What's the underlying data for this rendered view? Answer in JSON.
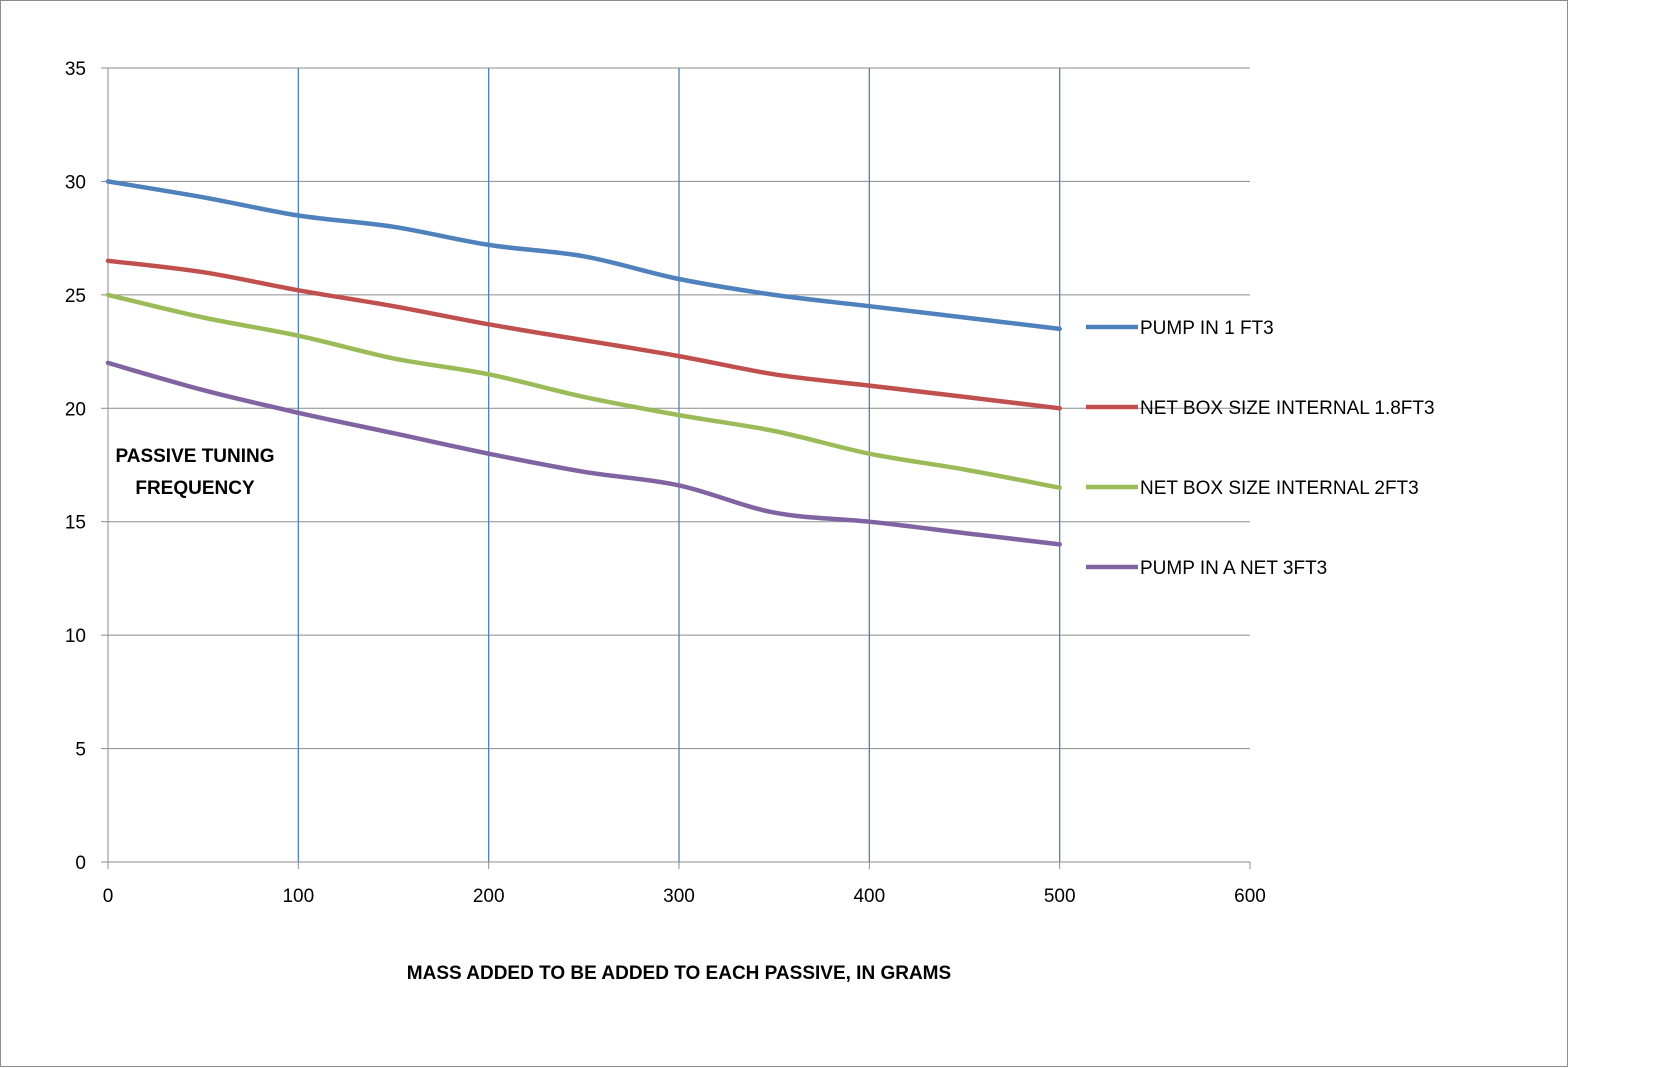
{
  "chart_data": {
    "type": "line",
    "title": "",
    "xlabel": "MASS ADDED TO BE ADDED TO EACH PASSIVE, IN GRAMS",
    "ylabel_lines": [
      "PASSIVE TUNING",
      "FREQUENCY"
    ],
    "xlim": [
      0,
      600
    ],
    "ylim": [
      0,
      35
    ],
    "x_ticks": [
      0,
      100,
      200,
      300,
      400,
      500,
      600
    ],
    "y_ticks": [
      0,
      5,
      10,
      15,
      20,
      25,
      30,
      35
    ],
    "x_tick_labels": [
      "0",
      "100",
      "200",
      "300",
      "400",
      "500",
      "600"
    ],
    "y_tick_labels": [
      "0",
      "5",
      "10",
      "15",
      "20",
      "25",
      "30",
      "35"
    ],
    "grid": "horizontal and vertical gridlines",
    "legend_position": "right",
    "x": [
      0,
      50,
      100,
      150,
      200,
      250,
      300,
      350,
      400,
      450,
      500
    ],
    "series": [
      {
        "name": "PUMP IN 1 FT3",
        "color": "#4f81bd",
        "values": [
          30,
          29.3,
          28.5,
          28,
          27.2,
          26.7,
          25.7,
          25,
          24.5,
          24,
          23.5
        ]
      },
      {
        "name": "NET BOX SIZE INTERNAL 1.8FT3",
        "color": "#c0504d",
        "values": [
          26.5,
          26,
          25.2,
          24.5,
          23.7,
          23,
          22.3,
          21.5,
          21,
          20.5,
          20
        ]
      },
      {
        "name": "NET BOX SIZE INTERNAL 2FT3",
        "color": "#9bbb59",
        "values": [
          25,
          24,
          23.2,
          22.2,
          21.5,
          20.5,
          19.7,
          19,
          18,
          17.3,
          16.5
        ]
      },
      {
        "name": "PUMP IN A NET 3FT3",
        "color": "#8064a2",
        "values": [
          22,
          20.8,
          19.8,
          18.9,
          18,
          17.2,
          16.6,
          15.4,
          15,
          14.5,
          14
        ]
      }
    ]
  }
}
